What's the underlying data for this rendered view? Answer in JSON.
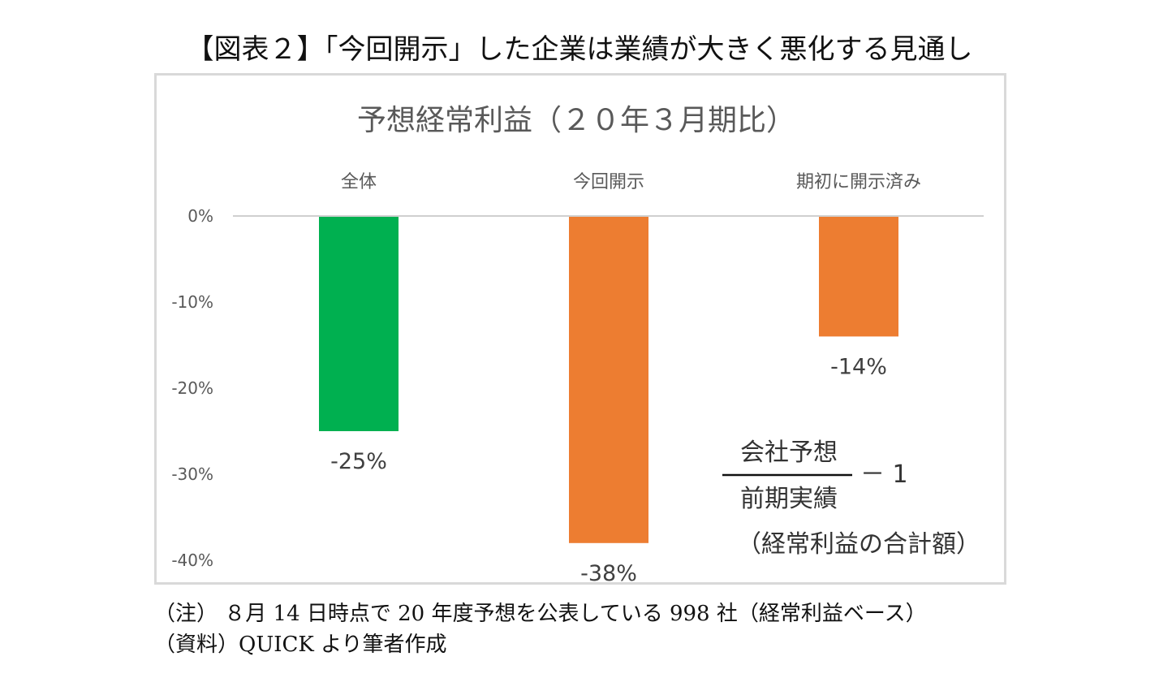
{
  "figure_title": "【図表２】「今回開示」した企業は業績が大きく悪化する見通し",
  "notes": {
    "line1": "（注） ８月 14 日時点で 20 年度予想を公表している 998 社（経常利益ベース）",
    "line2": "（資料）QUICK より筆者作成"
  },
  "formula": {
    "numerator": "会社予想",
    "denominator": "前期実績",
    "suffix": "－ 1",
    "caption": "（経常利益の合計額）"
  },
  "chart_data": {
    "type": "bar",
    "title": "予想経常利益（２０年３月期比）",
    "categories": [
      "全体",
      "今回開示",
      "期初に開示済み"
    ],
    "values": [
      -25,
      -38,
      -14
    ],
    "data_labels": [
      "-25%",
      "-38%",
      "-14%"
    ],
    "colors": [
      "#00b050",
      "#ed7d31",
      "#ed7d31"
    ],
    "ylim": [
      -40,
      0
    ],
    "yticks": [
      0,
      -10,
      -20,
      -30,
      -40
    ],
    "ytick_labels": [
      "0%",
      "-10%",
      "-20%",
      "-30%",
      "-40%"
    ],
    "xlabel": "",
    "ylabel": "",
    "grid": false,
    "legend": false
  }
}
